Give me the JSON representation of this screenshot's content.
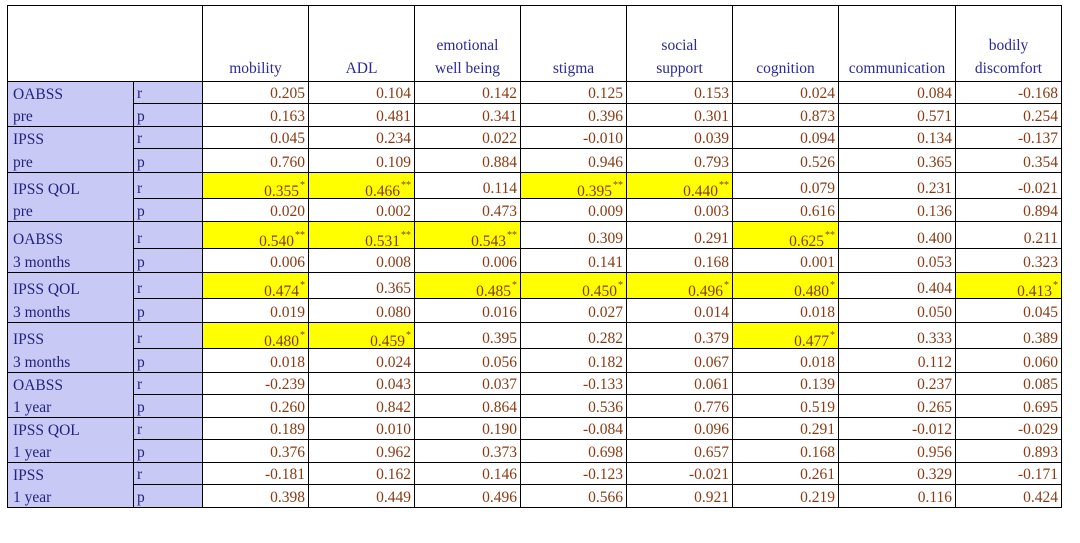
{
  "columns": [
    "mobility",
    "ADL",
    "emotional well being",
    "stigma",
    "social support",
    "cognition",
    "communication",
    "bodily discomfort"
  ],
  "column_lines": [
    [
      "mobility"
    ],
    [
      "ADL"
    ],
    [
      "emotional",
      "well being"
    ],
    [
      "stigma"
    ],
    [
      "social",
      "support"
    ],
    [
      "cognition"
    ],
    [
      "communication"
    ],
    [
      "bodily",
      "discomfort"
    ]
  ],
  "colors": {
    "label_bg": "#c9c9f5",
    "highlight": "#ffff00",
    "value_text": "#8a3a12",
    "label_text": "#23237f"
  },
  "groups": [
    {
      "name": [
        "OABSS",
        "pre"
      ],
      "r": [
        {
          "v": "0.205"
        },
        {
          "v": "0.104"
        },
        {
          "v": "0.142"
        },
        {
          "v": "0.125"
        },
        {
          "v": "0.153"
        },
        {
          "v": "0.024"
        },
        {
          "v": "0.084"
        },
        {
          "v": "-0.168"
        }
      ],
      "p": [
        "0.163",
        "0.481",
        "0.341",
        "0.396",
        "0.301",
        "0.873",
        "0.571",
        "0.254"
      ]
    },
    {
      "name": [
        "IPSS",
        "pre"
      ],
      "r": [
        {
          "v": "0.045"
        },
        {
          "v": "0.234"
        },
        {
          "v": "0.022"
        },
        {
          "v": "-0.010"
        },
        {
          "v": "0.039"
        },
        {
          "v": "0.094"
        },
        {
          "v": "0.134"
        },
        {
          "v": "-0.137"
        }
      ],
      "p": [
        "0.760",
        "0.109",
        "0.884",
        "0.946",
        "0.793",
        "0.526",
        "0.365",
        "0.354"
      ]
    },
    {
      "name": [
        "IPSS QOL",
        "pre"
      ],
      "r": [
        {
          "v": "0.355",
          "sig": "*"
        },
        {
          "v": "0.466",
          "sig": "**"
        },
        {
          "v": "0.114"
        },
        {
          "v": "0.395",
          "sig": "**"
        },
        {
          "v": "0.440",
          "sig": "**"
        },
        {
          "v": "0.079"
        },
        {
          "v": "0.231"
        },
        {
          "v": "-0.021"
        }
      ],
      "p": [
        "0.020",
        "0.002",
        "0.473",
        "0.009",
        "0.003",
        "0.616",
        "0.136",
        "0.894"
      ]
    },
    {
      "name": [
        "OABSS",
        "3 months"
      ],
      "r": [
        {
          "v": "0.540",
          "sig": "**"
        },
        {
          "v": "0.531",
          "sig": "**"
        },
        {
          "v": "0.543",
          "sig": "**"
        },
        {
          "v": "0.309"
        },
        {
          "v": "0.291"
        },
        {
          "v": "0.625",
          "sig": "**"
        },
        {
          "v": "0.400"
        },
        {
          "v": "0.211"
        }
      ],
      "p": [
        "0.006",
        "0.008",
        "0.006",
        "0.141",
        "0.168",
        "0.001",
        "0.053",
        "0.323"
      ]
    },
    {
      "name": [
        "IPSS QOL",
        "3 months"
      ],
      "r": [
        {
          "v": "0.474",
          "sig": "*"
        },
        {
          "v": "0.365"
        },
        {
          "v": "0.485",
          "sig": "*"
        },
        {
          "v": "0.450",
          "sig": "*"
        },
        {
          "v": "0.496",
          "sig": "*"
        },
        {
          "v": "0.480",
          "sig": "*"
        },
        {
          "v": "0.404"
        },
        {
          "v": "0.413",
          "sig": "*"
        }
      ],
      "p": [
        "0.019",
        "0.080",
        "0.016",
        "0.027",
        "0.014",
        "0.018",
        "0.050",
        "0.045"
      ]
    },
    {
      "name": [
        "IPSS",
        "3 months"
      ],
      "r": [
        {
          "v": "0.480",
          "sig": "*"
        },
        {
          "v": "0.459",
          "sig": "*"
        },
        {
          "v": "0.395"
        },
        {
          "v": "0.282"
        },
        {
          "v": "0.379"
        },
        {
          "v": "0.477",
          "sig": "*"
        },
        {
          "v": "0.333"
        },
        {
          "v": "0.389"
        }
      ],
      "p": [
        "0.018",
        "0.024",
        "0.056",
        "0.182",
        "0.067",
        "0.018",
        "0.112",
        "0.060"
      ]
    },
    {
      "name": [
        "OABSS",
        "1 year"
      ],
      "r": [
        {
          "v": "-0.239"
        },
        {
          "v": "0.043"
        },
        {
          "v": "0.037"
        },
        {
          "v": "-0.133"
        },
        {
          "v": "0.061"
        },
        {
          "v": "0.139"
        },
        {
          "v": "0.237"
        },
        {
          "v": "0.085"
        }
      ],
      "p": [
        "0.260",
        "0.842",
        "0.864",
        "0.536",
        "0.776",
        "0.519",
        "0.265",
        "0.695"
      ]
    },
    {
      "name": [
        "IPSS QOL",
        "1 year"
      ],
      "r": [
        {
          "v": "0.189"
        },
        {
          "v": "0.010"
        },
        {
          "v": "0.190"
        },
        {
          "v": "-0.084"
        },
        {
          "v": "0.096"
        },
        {
          "v": "0.291"
        },
        {
          "v": "-0.012"
        },
        {
          "v": "-0.029"
        }
      ],
      "p": [
        "0.376",
        "0.962",
        "0.373",
        "0.698",
        "0.657",
        "0.168",
        "0.956",
        "0.893"
      ]
    },
    {
      "name": [
        "IPSS",
        "1 year"
      ],
      "r": [
        {
          "v": "-0.181"
        },
        {
          "v": "0.162"
        },
        {
          "v": "0.146"
        },
        {
          "v": "-0.123"
        },
        {
          "v": "-0.021"
        },
        {
          "v": "0.261"
        },
        {
          "v": "0.329"
        },
        {
          "v": "-0.171"
        }
      ],
      "p": [
        "0.398",
        "0.449",
        "0.496",
        "0.566",
        "0.921",
        "0.219",
        "0.116",
        "0.424"
      ]
    }
  ],
  "stat_labels": {
    "r": "r",
    "p": "p"
  }
}
